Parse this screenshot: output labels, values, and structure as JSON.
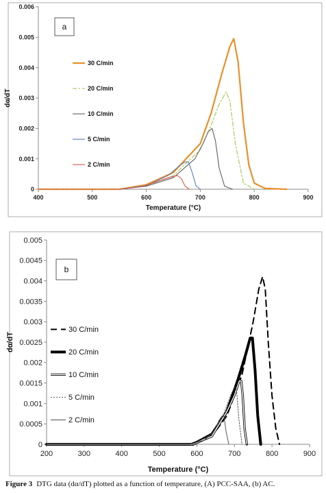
{
  "chart_data": [
    {
      "type": "line",
      "panel_label": "a",
      "xlabel": "Temperature (°C)",
      "ylabel": "dα/dT",
      "xlim": [
        400,
        900
      ],
      "ylim": [
        0,
        0.006
      ],
      "xticks": [
        "400",
        "500",
        "600",
        "700",
        "800",
        "900"
      ],
      "yticks": [
        "0",
        "0.001",
        "0.002",
        "0.003",
        "0.004",
        "0.005",
        "0.006"
      ],
      "grid": false,
      "legend_position": "left-inside",
      "series": [
        {
          "name": "30 C/min",
          "color": "#e8902a",
          "dash": "solid",
          "width": 2.2,
          "x": [
            400,
            550,
            600,
            650,
            700,
            720,
            740,
            755,
            762,
            770,
            780,
            790,
            800,
            820,
            860
          ],
          "y": [
            0,
            0,
            0.00015,
            0.00055,
            0.0015,
            0.0025,
            0.0038,
            0.0047,
            0.00495,
            0.0042,
            0.0022,
            0.0008,
            0.0002,
            3e-05,
            0
          ]
        },
        {
          "name": "20 C/min",
          "color": "#b6cf6f",
          "dash": "6,3,2,3",
          "width": 1.4,
          "x": [
            400,
            550,
            600,
            650,
            700,
            720,
            735,
            748,
            755,
            765,
            780,
            800
          ],
          "y": [
            0,
            0,
            0.00012,
            0.00045,
            0.0013,
            0.0021,
            0.0028,
            0.0032,
            0.0029,
            0.0015,
            0.0002,
            0
          ],
          "legend_line": "dashdot"
        },
        {
          "name": "10 C/min",
          "color": "#606060",
          "dash": "solid",
          "width": 1.1,
          "x": [
            400,
            550,
            600,
            650,
            690,
            705,
            715,
            722,
            728,
            735,
            745,
            760
          ],
          "y": [
            0,
            0,
            0.0001,
            0.00038,
            0.001,
            0.0015,
            0.0019,
            0.002,
            0.0016,
            0.0007,
            0.0001,
            0
          ]
        },
        {
          "name": "5 C/min",
          "color": "#5a7fb5",
          "dash": "solid",
          "width": 1.1,
          "x": [
            400,
            550,
            600,
            640,
            660,
            672,
            678,
            685,
            692,
            700
          ],
          "y": [
            0,
            0,
            0.00012,
            0.00045,
            0.00075,
            0.0009,
            0.0009,
            0.00055,
            0.00012,
            0
          ]
        },
        {
          "name": "2 C/min",
          "color": "#d9574a",
          "dash": "solid",
          "width": 1.1,
          "x": [
            400,
            550,
            590,
            620,
            645,
            658,
            665,
            672,
            680
          ],
          "y": [
            0,
            0,
            8e-05,
            0.00025,
            0.0004,
            0.00045,
            0.00035,
            0.0001,
            0
          ]
        }
      ]
    },
    {
      "type": "line",
      "panel_label": "b",
      "xlabel": "Temperature (°C)",
      "ylabel": "dα/dT",
      "xlim": [
        200,
        900
      ],
      "ylim": [
        0,
        0.005
      ],
      "xticks": [
        "200",
        "300",
        "400",
        "500",
        "600",
        "700",
        "800",
        "900"
      ],
      "yticks": [
        "0",
        "0.0005",
        "0.001",
        "0.0015",
        "0.002",
        "0.0025",
        "0.003",
        "0.0035",
        "0.004",
        "0.0045",
        "0.005"
      ],
      "grid": false,
      "legend_position": "left-inside",
      "series": [
        {
          "name": "30 C/min",
          "color": "#000000",
          "dash": "9,6",
          "width": 2.0,
          "x": [
            200,
            580,
            640,
            680,
            720,
            750,
            765,
            775,
            782,
            790,
            800,
            810,
            820
          ],
          "y": [
            0,
            0,
            0.0002,
            0.0007,
            0.0017,
            0.003,
            0.0038,
            0.0041,
            0.0038,
            0.0025,
            0.0012,
            0.0004,
            0
          ]
        },
        {
          "name": "20 C/min",
          "color": "#000000",
          "dash": "solid",
          "width": 4.0,
          "x": [
            200,
            590,
            640,
            680,
            710,
            730,
            742,
            748,
            755,
            762,
            770
          ],
          "y": [
            0,
            0,
            0.00025,
            0.0008,
            0.0016,
            0.0022,
            0.0026,
            0.0026,
            0.0018,
            0.0007,
            0
          ]
        },
        {
          "name": "10 C/min",
          "color": "#000000",
          "dash": "solid",
          "width": 3.2,
          "hollow": true,
          "x": [
            200,
            590,
            640,
            680,
            700,
            713,
            718,
            722,
            727,
            733
          ],
          "y": [
            0,
            0,
            0.0002,
            0.0008,
            0.0012,
            0.00155,
            0.00155,
            0.0012,
            0.0004,
            0
          ]
        },
        {
          "name": "5 C/min",
          "color": "#555555",
          "dash": "2,2",
          "width": 1.0,
          "x": [
            200,
            590,
            640,
            670,
            690,
            700,
            705,
            712,
            720
          ],
          "y": [
            0,
            0,
            0.00025,
            0.0007,
            0.0012,
            0.0014,
            0.0014,
            0.0006,
            0
          ]
        },
        {
          "name": "2 C/min",
          "color": "#444444",
          "dash": "solid",
          "width": 0.9,
          "x": [
            200,
            580,
            620,
            645,
            660,
            668,
            672,
            678,
            685
          ],
          "y": [
            0,
            0,
            0.0001,
            0.0003,
            0.0006,
            0.0007,
            0.0007,
            0.0003,
            0
          ]
        }
      ]
    }
  ],
  "caption": {
    "lead": "Figure 3",
    "text": "DTG data (dα/dT) plotted as a function of temperature, (A) PCC-SAA, (b) AC."
  }
}
